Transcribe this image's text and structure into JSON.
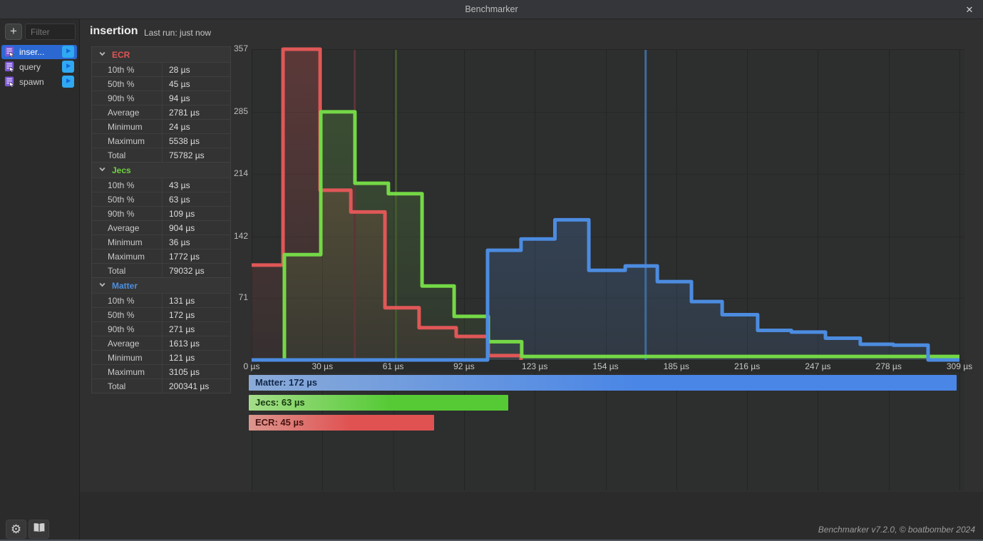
{
  "window": {
    "title": "Benchmarker",
    "close_glyph": "✕"
  },
  "sidebar": {
    "add_label": "+",
    "filter_placeholder": "Filter",
    "items": [
      {
        "label": "inser...",
        "selected": true
      },
      {
        "label": "query",
        "selected": false
      },
      {
        "label": "spawn",
        "selected": false
      }
    ]
  },
  "header": {
    "title": "insertion",
    "last_run": "Last run: just now"
  },
  "stats": {
    "sections": [
      {
        "name": "ECR",
        "color": "#e05555",
        "rows": [
          [
            "10th %",
            "28 µs"
          ],
          [
            "50th %",
            "45 µs"
          ],
          [
            "90th %",
            "94 µs"
          ],
          [
            "Average",
            "2781 µs"
          ],
          [
            "Minimum",
            "24 µs"
          ],
          [
            "Maximum",
            "5538 µs"
          ],
          [
            "Total",
            "75782 µs"
          ]
        ]
      },
      {
        "name": "Jecs",
        "color": "#6fd13f",
        "rows": [
          [
            "10th %",
            "43 µs"
          ],
          [
            "50th %",
            "63 µs"
          ],
          [
            "90th %",
            "109 µs"
          ],
          [
            "Average",
            "904 µs"
          ],
          [
            "Minimum",
            "36 µs"
          ],
          [
            "Maximum",
            "1772 µs"
          ],
          [
            "Total",
            "79032 µs"
          ]
        ]
      },
      {
        "name": "Matter",
        "color": "#4e8ede",
        "rows": [
          [
            "10th %",
            "131 µs"
          ],
          [
            "50th %",
            "172 µs"
          ],
          [
            "90th %",
            "271 µs"
          ],
          [
            "Average",
            "1613 µs"
          ],
          [
            "Minimum",
            "121 µs"
          ],
          [
            "Maximum",
            "3105 µs"
          ],
          [
            "Total",
            "200341 µs"
          ]
        ]
      }
    ]
  },
  "chart_data": {
    "type": "step-histogram",
    "x_unit": "µs",
    "x_range_us": [
      0,
      309
    ],
    "y_range": [
      0,
      357
    ],
    "grid": true,
    "x_ticks": [
      {
        "us": 0,
        "label": "0 µs"
      },
      {
        "us": 30.9,
        "label": "30 µs"
      },
      {
        "us": 61.8,
        "label": "61 µs"
      },
      {
        "us": 92.7,
        "label": "92 µs"
      },
      {
        "us": 123.6,
        "label": "123 µs"
      },
      {
        "us": 154.5,
        "label": "154 µs"
      },
      {
        "us": 185.4,
        "label": "185 µs"
      },
      {
        "us": 216.3,
        "label": "216 µs"
      },
      {
        "us": 247.2,
        "label": "247 µs"
      },
      {
        "us": 278.1,
        "label": "278 µs"
      },
      {
        "us": 309,
        "label": "309 µs"
      }
    ],
    "y_ticks": [
      357,
      285,
      214,
      142,
      71
    ],
    "series": [
      {
        "name": "ECR",
        "color": "#e05757",
        "median_us": 45,
        "median_marker_color": "#5d3538",
        "steps_us_count": [
          [
            0,
            109
          ],
          [
            13.7,
            357
          ],
          [
            29.9,
            195
          ],
          [
            43.3,
            170
          ],
          [
            58.2,
            60
          ],
          [
            73.1,
            37
          ],
          [
            89.3,
            27
          ],
          [
            103.3,
            5
          ],
          [
            117.6,
            0
          ]
        ]
      },
      {
        "name": "Jecs",
        "color": "#74d846",
        "median_us": 63,
        "median_marker_color": "#43582f",
        "steps_us_count": [
          [
            0,
            0
          ],
          [
            14.3,
            121
          ],
          [
            30.2,
            285
          ],
          [
            45.1,
            203
          ],
          [
            59.7,
            191
          ],
          [
            74.4,
            85
          ],
          [
            88.4,
            50
          ],
          [
            103.3,
            21
          ],
          [
            117.9,
            4
          ],
          [
            309,
            4
          ]
        ]
      },
      {
        "name": "Matter",
        "color": "#4c8ce0",
        "median_us": 172,
        "median_marker_color": "#3e6b9d",
        "steps_us_count": [
          [
            0,
            0
          ],
          [
            103,
            126
          ],
          [
            117.6,
            139
          ],
          [
            132.4,
            161
          ],
          [
            147.2,
            103
          ],
          [
            163.1,
            108
          ],
          [
            177.1,
            90
          ],
          [
            192,
            67
          ],
          [
            205.4,
            52
          ],
          [
            220.9,
            34
          ],
          [
            235.6,
            32
          ],
          [
            250.5,
            25
          ],
          [
            265.7,
            18
          ],
          [
            280.1,
            17
          ],
          [
            295.3,
            0
          ],
          [
            309,
            0
          ]
        ]
      }
    ],
    "legend_bars": [
      {
        "label": "Matter: 172 µs",
        "value_us": 172,
        "max_us": 172,
        "color_from": "#8babd8",
        "color_to": "#4a86e6",
        "text_color": "#12284a"
      },
      {
        "label": "Jecs: 63 µs",
        "value_us": 63,
        "max_us": 172,
        "color_from": "#a4dd8a",
        "color_to": "#55ca35",
        "text_color": "#173a0e"
      },
      {
        "label": "ECR: 45 µs",
        "value_us": 45,
        "max_us": 172,
        "color_from": "#dc968e",
        "color_to": "#e05252",
        "text_color": "#471311"
      }
    ]
  },
  "footer": {
    "version": "Benchmarker v7.2.0, © boatbomber 2024"
  },
  "icons": {
    "close": "close-icon",
    "add": "plus-icon",
    "benchmark_item": "script-icon",
    "run": "play-icon",
    "section_toggle": "chevron-down-icon",
    "settings": "gear-icon",
    "docs": "book-icon"
  }
}
